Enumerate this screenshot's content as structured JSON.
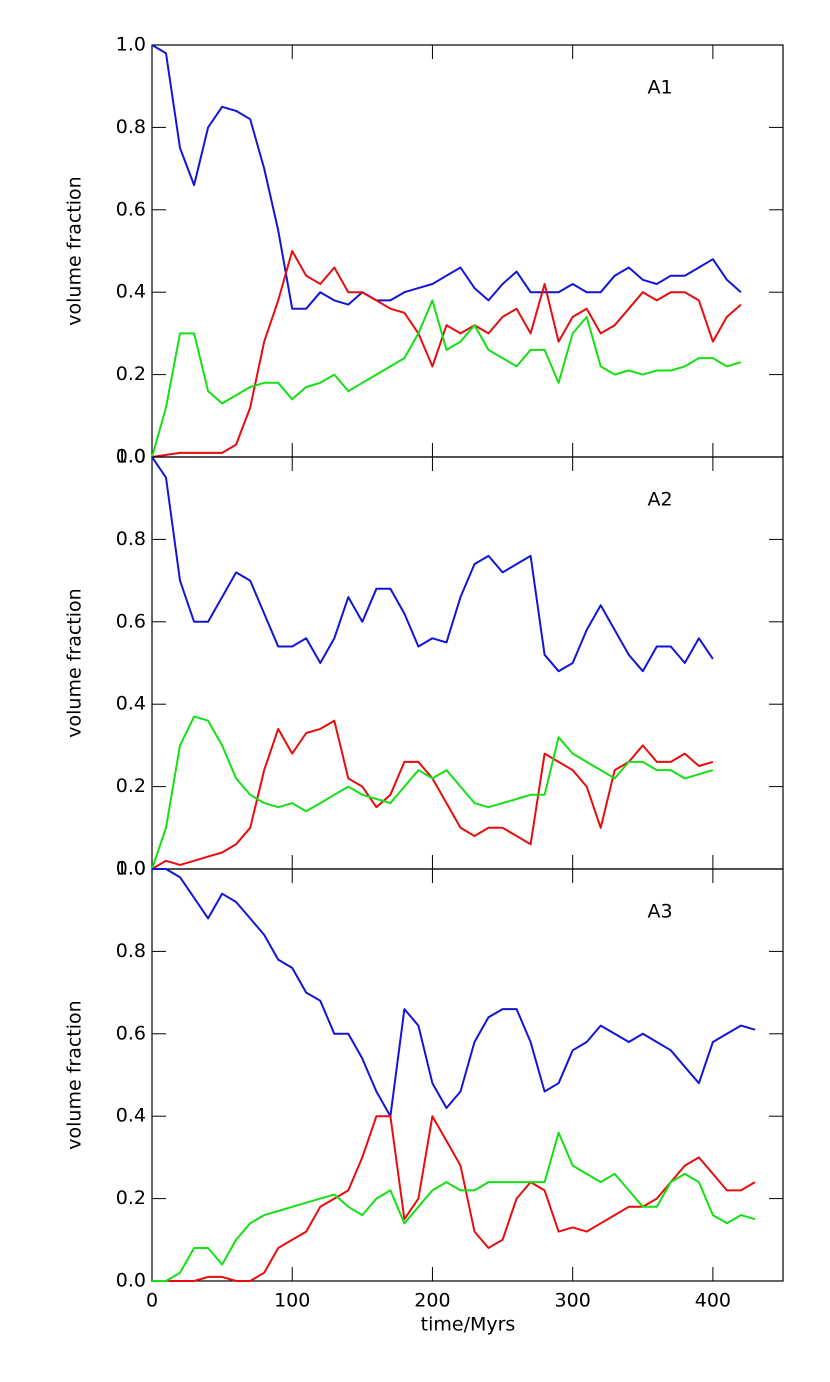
{
  "chart_data": [
    {
      "type": "line",
      "title": "A1",
      "ylabel": "volume fraction",
      "x": [
        0,
        10,
        20,
        30,
        40,
        50,
        60,
        70,
        80,
        90,
        100,
        110,
        120,
        130,
        140,
        150,
        160,
        170,
        180,
        190,
        200,
        210,
        220,
        230,
        240,
        250,
        260,
        270,
        280,
        290,
        300,
        310,
        320,
        330,
        340,
        350,
        360,
        370,
        380,
        390,
        400,
        410,
        420
      ],
      "series": [
        {
          "color": "#1414d8",
          "values": [
            1.0,
            0.98,
            0.75,
            0.66,
            0.8,
            0.85,
            0.84,
            0.82,
            0.7,
            0.55,
            0.36,
            0.36,
            0.4,
            0.38,
            0.37,
            0.4,
            0.38,
            0.38,
            0.4,
            0.41,
            0.42,
            0.44,
            0.46,
            0.41,
            0.38,
            0.42,
            0.45,
            0.4,
            0.4,
            0.4,
            0.42,
            0.4,
            0.4,
            0.44,
            0.46,
            0.43,
            0.42,
            0.44,
            0.44,
            0.46,
            0.48,
            0.43,
            0.4
          ]
        },
        {
          "color": "#e80c0c",
          "values": [
            0,
            0.005,
            0.01,
            0.01,
            0.01,
            0.01,
            0.03,
            0.12,
            0.28,
            0.38,
            0.5,
            0.44,
            0.42,
            0.46,
            0.4,
            0.4,
            0.38,
            0.36,
            0.35,
            0.3,
            0.22,
            0.32,
            0.3,
            0.32,
            0.3,
            0.34,
            0.36,
            0.3,
            0.42,
            0.28,
            0.34,
            0.36,
            0.3,
            0.32,
            0.36,
            0.4,
            0.38,
            0.4,
            0.4,
            0.38,
            0.28,
            0.34,
            0.37
          ]
        },
        {
          "color": "#14e014",
          "values": [
            0,
            0.12,
            0.3,
            0.3,
            0.16,
            0.13,
            0.15,
            0.17,
            0.18,
            0.18,
            0.14,
            0.17,
            0.18,
            0.2,
            0.16,
            0.18,
            0.2,
            0.22,
            0.24,
            0.3,
            0.38,
            0.26,
            0.28,
            0.32,
            0.26,
            0.24,
            0.22,
            0.26,
            0.26,
            0.18,
            0.3,
            0.34,
            0.22,
            0.2,
            0.21,
            0.2,
            0.21,
            0.21,
            0.22,
            0.24,
            0.24,
            0.22,
            0.23
          ]
        }
      ],
      "xlim": [
        0,
        450
      ],
      "xticks": [
        0,
        100,
        200,
        300,
        400
      ],
      "ylim": [
        0,
        1
      ],
      "yticks": [
        {
          "value": 0,
          "label": "0.0"
        },
        0.2,
        0.4,
        0.6,
        0.8,
        {
          "value": 1,
          "label": "1.0"
        }
      ]
    },
    {
      "type": "line",
      "title": "A2",
      "ylabel": "volume fraction",
      "x": [
        0,
        10,
        20,
        30,
        40,
        50,
        60,
        70,
        80,
        90,
        100,
        110,
        120,
        130,
        140,
        150,
        160,
        170,
        180,
        190,
        200,
        210,
        220,
        230,
        240,
        250,
        260,
        270,
        280,
        290,
        300,
        310,
        320,
        330,
        340,
        350,
        360,
        370,
        380,
        390,
        400
      ],
      "series": [
        {
          "color": "#1414d8",
          "values": [
            1.0,
            0.95,
            0.7,
            0.6,
            0.6,
            0.66,
            0.72,
            0.7,
            0.62,
            0.54,
            0.54,
            0.56,
            0.5,
            0.56,
            0.66,
            0.6,
            0.68,
            0.68,
            0.62,
            0.54,
            0.56,
            0.55,
            0.66,
            0.74,
            0.76,
            0.72,
            0.74,
            0.76,
            0.52,
            0.48,
            0.5,
            0.58,
            0.64,
            0.58,
            0.52,
            0.48,
            0.54,
            0.54,
            0.5,
            0.56,
            0.51
          ]
        },
        {
          "color": "#e80c0c",
          "values": [
            0,
            0.02,
            0.01,
            0.02,
            0.03,
            0.04,
            0.06,
            0.1,
            0.24,
            0.34,
            0.28,
            0.33,
            0.34,
            0.36,
            0.22,
            0.2,
            0.15,
            0.18,
            0.26,
            0.26,
            0.22,
            0.16,
            0.1,
            0.08,
            0.1,
            0.1,
            0.08,
            0.06,
            0.28,
            0.26,
            0.24,
            0.2,
            0.1,
            0.24,
            0.26,
            0.3,
            0.26,
            0.26,
            0.28,
            0.25,
            0.26
          ]
        },
        {
          "color": "#14e014",
          "values": [
            0,
            0.1,
            0.3,
            0.37,
            0.36,
            0.3,
            0.22,
            0.18,
            0.16,
            0.15,
            0.16,
            0.14,
            0.16,
            0.18,
            0.2,
            0.18,
            0.17,
            0.16,
            0.2,
            0.24,
            0.22,
            0.24,
            0.2,
            0.16,
            0.15,
            0.16,
            0.17,
            0.18,
            0.18,
            0.32,
            0.28,
            0.26,
            0.24,
            0.22,
            0.26,
            0.26,
            0.24,
            0.24,
            0.22,
            0.23,
            0.24
          ]
        }
      ],
      "xlim": [
        0,
        450
      ],
      "xticks": [
        0,
        100,
        200,
        300,
        400
      ],
      "ylim": [
        0,
        1
      ],
      "yticks": [
        {
          "value": 0,
          "label": "0.0"
        },
        0.2,
        0.4,
        0.6,
        0.8,
        {
          "value": 1,
          "label": "1.0"
        }
      ]
    },
    {
      "type": "line",
      "title": "A3",
      "ylabel": "volume fraction",
      "xlabel": "time/Myrs",
      "x": [
        0,
        10,
        20,
        30,
        40,
        50,
        60,
        70,
        80,
        90,
        100,
        110,
        120,
        130,
        140,
        150,
        160,
        170,
        180,
        190,
        200,
        210,
        220,
        230,
        240,
        250,
        260,
        270,
        280,
        290,
        300,
        310,
        320,
        330,
        340,
        350,
        360,
        370,
        380,
        390,
        400,
        410,
        420,
        430
      ],
      "series": [
        {
          "color": "#1414d8",
          "values": [
            1.0,
            1.0,
            0.98,
            0.93,
            0.88,
            0.94,
            0.92,
            0.88,
            0.84,
            0.78,
            0.76,
            0.7,
            0.68,
            0.6,
            0.6,
            0.54,
            0.46,
            0.4,
            0.66,
            0.62,
            0.48,
            0.42,
            0.46,
            0.58,
            0.64,
            0.66,
            0.66,
            0.58,
            0.46,
            0.48,
            0.56,
            0.58,
            0.62,
            0.6,
            0.58,
            0.6,
            0.58,
            0.56,
            0.52,
            0.48,
            0.58,
            0.6,
            0.62,
            0.61
          ]
        },
        {
          "color": "#e80c0c",
          "values": [
            0,
            0,
            0,
            0,
            0.01,
            0.01,
            0,
            0,
            0.02,
            0.08,
            0.1,
            0.12,
            0.18,
            0.2,
            0.22,
            0.3,
            0.4,
            0.4,
            0.15,
            0.2,
            0.4,
            0.34,
            0.28,
            0.12,
            0.08,
            0.1,
            0.2,
            0.24,
            0.22,
            0.12,
            0.13,
            0.12,
            0.14,
            0.16,
            0.18,
            0.18,
            0.2,
            0.24,
            0.28,
            0.3,
            0.26,
            0.22,
            0.22,
            0.24
          ]
        },
        {
          "color": "#14e014",
          "values": [
            0,
            0,
            0.02,
            0.08,
            0.08,
            0.04,
            0.1,
            0.14,
            0.16,
            0.17,
            0.18,
            0.19,
            0.2,
            0.21,
            0.18,
            0.16,
            0.2,
            0.22,
            0.14,
            0.18,
            0.22,
            0.24,
            0.22,
            0.22,
            0.24,
            0.24,
            0.24,
            0.24,
            0.24,
            0.36,
            0.28,
            0.26,
            0.24,
            0.26,
            0.22,
            0.18,
            0.18,
            0.24,
            0.26,
            0.24,
            0.16,
            0.14,
            0.16,
            0.15
          ]
        }
      ],
      "xlim": [
        0,
        450
      ],
      "xticks": [
        0,
        100,
        200,
        300,
        400
      ],
      "ylim": [
        0,
        1
      ],
      "yticks": [
        {
          "value": 0,
          "label": "0.0"
        },
        0.2,
        0.4,
        0.6,
        0.8,
        {
          "value": 1,
          "label": "1.0"
        }
      ]
    }
  ]
}
